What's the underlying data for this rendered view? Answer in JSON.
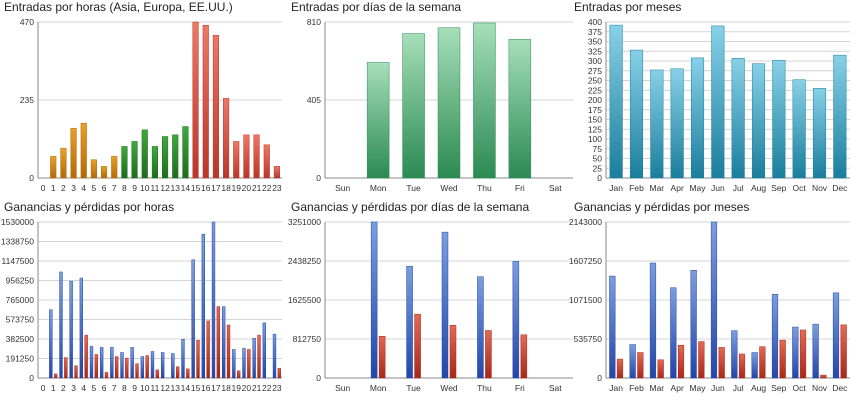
{
  "chart_data": [
    {
      "id": "p0",
      "type": "bar",
      "title": "Entradas por horas (Asia, Europa, EE.UU.)",
      "categories": [
        "0",
        "1",
        "2",
        "3",
        "4",
        "5",
        "6",
        "7",
        "8",
        "9",
        "10",
        "11",
        "12",
        "13",
        "14",
        "15",
        "16",
        "17",
        "18",
        "19",
        "20",
        "21",
        "22",
        "23"
      ],
      "ylim": [
        0,
        470
      ],
      "yticks": [
        "0",
        "235",
        "470"
      ],
      "grid": true,
      "series": [
        {
          "values": [
            0,
            65,
            90,
            150,
            165,
            55,
            35,
            65,
            0,
            0,
            0,
            0,
            0,
            0,
            0,
            0,
            0,
            0,
            0,
            0,
            0,
            0,
            0,
            0
          ],
          "color": "#e8a02a",
          "color_dark": "#b36a08"
        },
        {
          "values": [
            0,
            0,
            0,
            0,
            0,
            0,
            0,
            0,
            95,
            110,
            145,
            95,
            125,
            130,
            155,
            0,
            0,
            0,
            0,
            0,
            0,
            0,
            0,
            0
          ],
          "color": "#3fa83f",
          "color_dark": "#1b6e1b"
        },
        {
          "values": [
            0,
            0,
            0,
            0,
            0,
            0,
            0,
            0,
            0,
            0,
            0,
            0,
            0,
            0,
            0,
            470,
            460,
            430,
            240,
            110,
            130,
            130,
            100,
            35
          ],
          "color": "#ee7766",
          "color_dark": "#b8362a"
        }
      ]
    },
    {
      "id": "p1",
      "type": "bar",
      "title": "Entradas por días de la semana",
      "categories": [
        "Sun",
        "Mon",
        "Tue",
        "Wed",
        "Thu",
        "Fri",
        "Sat"
      ],
      "ylim": [
        0,
        810
      ],
      "yticks": [
        "0",
        "405",
        "810"
      ],
      "grid": true,
      "series": [
        {
          "values": [
            0,
            600,
            750,
            780,
            805,
            720,
            0
          ],
          "color": "#a6dfb9",
          "color_dark": "#2b8a52"
        }
      ]
    },
    {
      "id": "p2",
      "type": "bar",
      "title": "Entradas por meses",
      "categories": [
        "Jan",
        "Feb",
        "Mar",
        "Apr",
        "May",
        "Jun",
        "Jul",
        "Aug",
        "Sep",
        "Oct",
        "Nov",
        "Dec"
      ],
      "ylim": [
        0,
        400
      ],
      "yticks": [
        "0",
        "25",
        "50",
        "75",
        "100",
        "125",
        "150",
        "175",
        "200",
        "225",
        "250",
        "275",
        "300",
        "325",
        "350",
        "375",
        "400"
      ],
      "grid": true,
      "series": [
        {
          "values": [
            392,
            328,
            277,
            280,
            308,
            390,
            307,
            293,
            302,
            252,
            230,
            315
          ],
          "color": "#88d0e8",
          "color_dark": "#1a7e9c"
        }
      ]
    },
    {
      "id": "p3",
      "type": "bar",
      "title": "Ganancias y pérdidas por horas",
      "categories": [
        "0",
        "1",
        "2",
        "3",
        "4",
        "5",
        "6",
        "7",
        "8",
        "9",
        "10",
        "11",
        "12",
        "13",
        "14",
        "15",
        "16",
        "17",
        "18",
        "19",
        "20",
        "21",
        "22",
        "23"
      ],
      "ylim": [
        0,
        1530000
      ],
      "yticks": [
        "0",
        "191250",
        "382500",
        "573750",
        "765000",
        "956250",
        "1147500",
        "1338750",
        "1530000"
      ],
      "grid": true,
      "series": [
        {
          "values": [
            0,
            670000,
            1040000,
            950000,
            980000,
            310000,
            300000,
            300000,
            250000,
            300000,
            210000,
            260000,
            250000,
            240000,
            380000,
            1160000,
            1410000,
            1530000,
            700000,
            280000,
            290000,
            390000,
            540000,
            430000
          ],
          "color": "#7b9ee0",
          "color_dark": "#2446a8"
        },
        {
          "values": [
            0,
            40000,
            200000,
            120000,
            420000,
            230000,
            55000,
            210000,
            195000,
            140000,
            220000,
            80000,
            0,
            110000,
            90000,
            370000,
            560000,
            700000,
            520000,
            70000,
            280000,
            420000,
            0,
            95000
          ],
          "color": "#e26a55",
          "color_dark": "#a8281a"
        }
      ]
    },
    {
      "id": "p4",
      "type": "bar",
      "title": "Ganancias y pérdidas por días de la semana",
      "categories": [
        "Sun",
        "Mon",
        "Tue",
        "Wed",
        "Thu",
        "Fri",
        "Sat"
      ],
      "ylim": [
        0,
        3251000
      ],
      "yticks": [
        "0",
        "812750",
        "1625500",
        "2438250",
        "3251000"
      ],
      "grid": true,
      "series": [
        {
          "values": [
            0,
            3251000,
            2330000,
            3040000,
            2110000,
            2430000,
            0
          ],
          "color": "#7b9ee0",
          "color_dark": "#2446a8"
        },
        {
          "values": [
            0,
            870000,
            1330000,
            1100000,
            990000,
            900000,
            0
          ],
          "color": "#e26a55",
          "color_dark": "#a8281a"
        }
      ]
    },
    {
      "id": "p5",
      "type": "bar",
      "title": "Ganancias y pérdidas por meses",
      "categories": [
        "Jan",
        "Feb",
        "Mar",
        "Apr",
        "May",
        "Jun",
        "Jul",
        "Aug",
        "Sep",
        "Oct",
        "Nov",
        "Dec"
      ],
      "ylim": [
        0,
        2143000
      ],
      "yticks": [
        "0",
        "535750",
        "1071500",
        "1607250",
        "2143000"
      ],
      "grid": true,
      "series": [
        {
          "values": [
            1400000,
            460000,
            1580000,
            1240000,
            1480000,
            2143000,
            650000,
            350000,
            1150000,
            700000,
            740000,
            1170000
          ],
          "color": "#7b9ee0",
          "color_dark": "#2446a8"
        },
        {
          "values": [
            260000,
            350000,
            250000,
            450000,
            500000,
            420000,
            330000,
            430000,
            520000,
            660000,
            40000,
            730000
          ],
          "color": "#e26a55",
          "color_dark": "#a8281a"
        }
      ]
    }
  ]
}
